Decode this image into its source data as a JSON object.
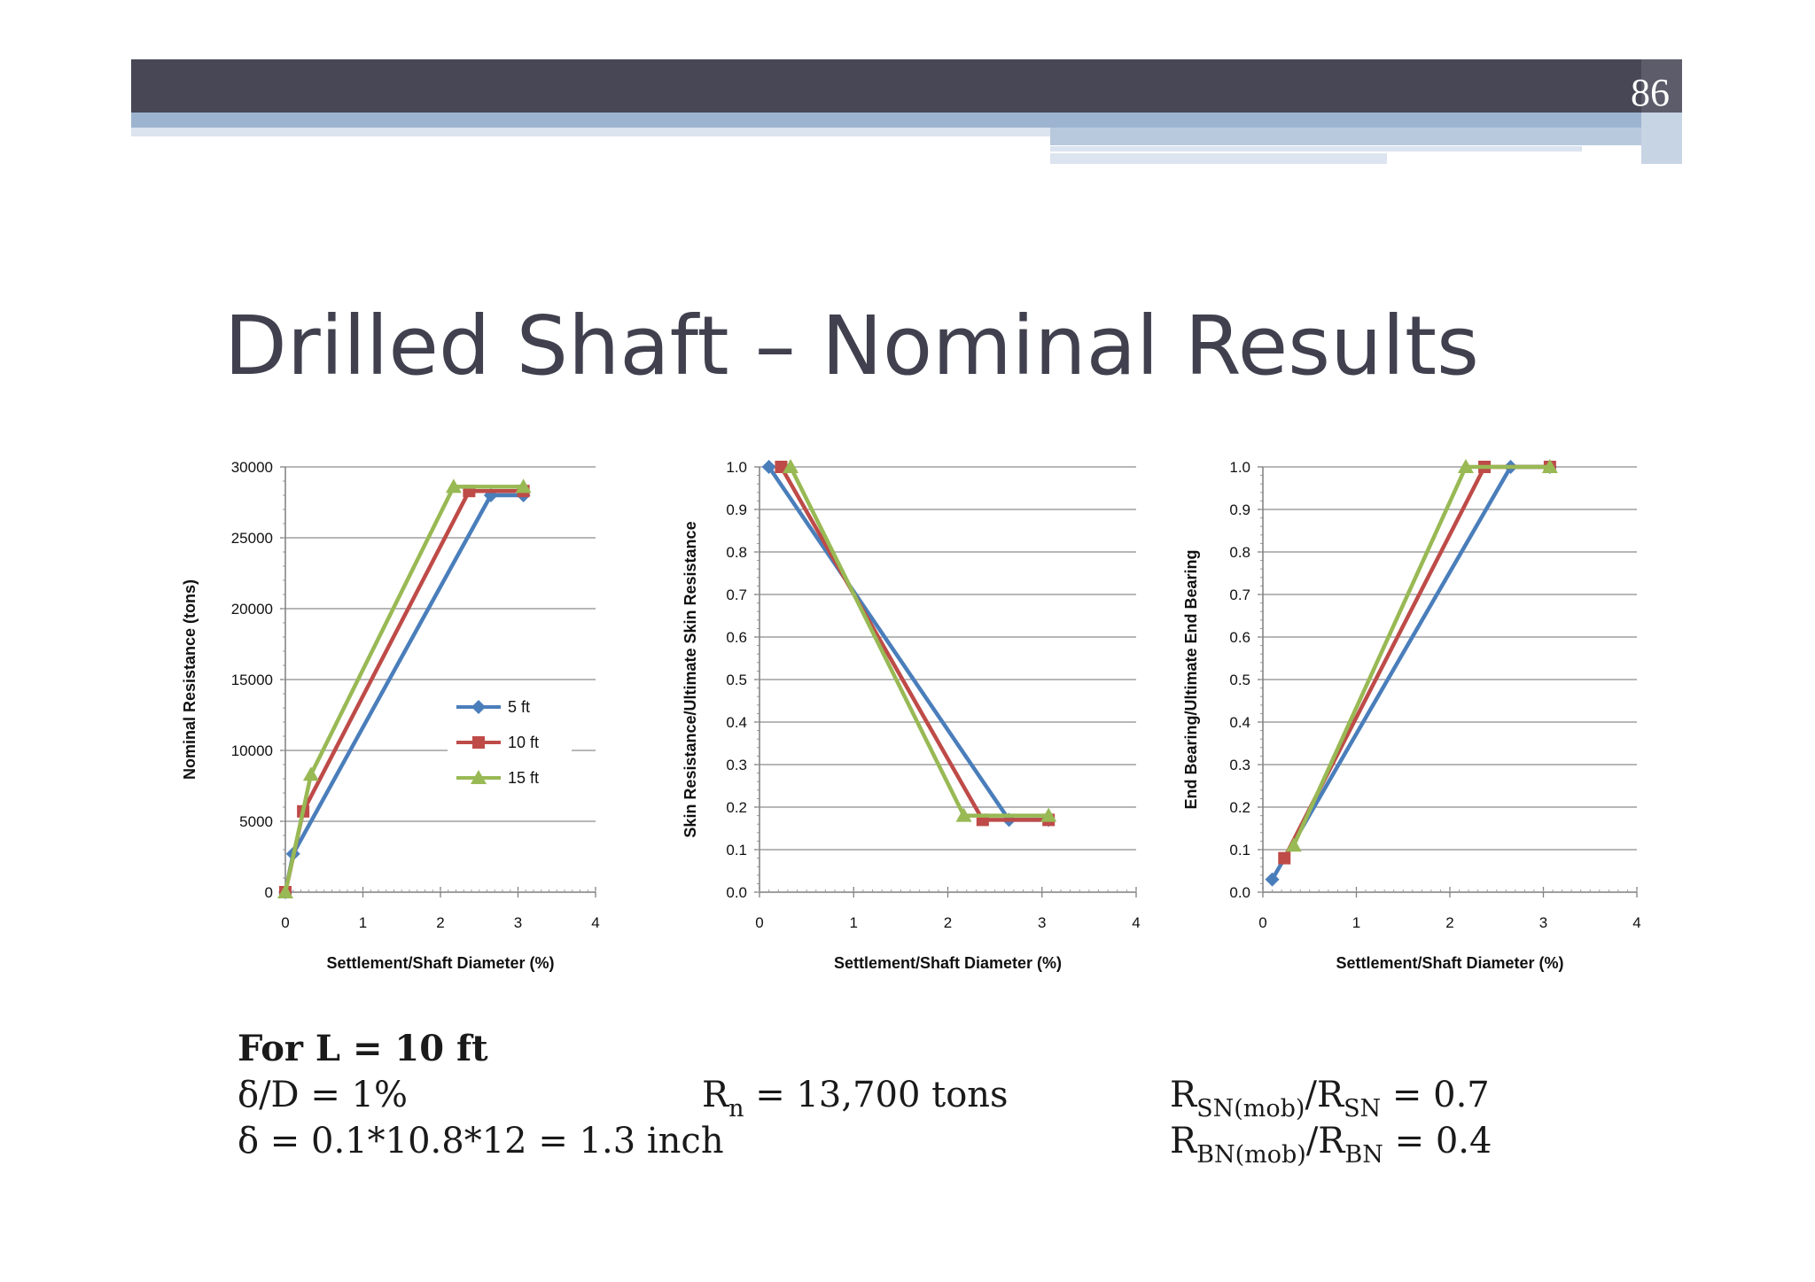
{
  "page": {
    "slide_number": "86",
    "title": "Drilled Shaft – Nominal Results"
  },
  "colors": {
    "header_bar": "#474756",
    "header_stripe": "#9db4d0",
    "title_text": "#40404f",
    "grid": "#8c8c8c",
    "series_5ft": "#4a7ebb",
    "series_10ft": "#be4b48",
    "series_15ft": "#98b954"
  },
  "chart_data": [
    {
      "type": "line",
      "xlabel": "Settlement/Shaft Diameter (%)",
      "ylabel": "Nominal Resistance  (tons)",
      "xlim": [
        0,
        4
      ],
      "ylim": [
        0,
        30000
      ],
      "xticks": [
        "0",
        "1",
        "2",
        "3",
        "4"
      ],
      "yticks": [
        "0",
        "5000",
        "10000",
        "15000",
        "20000",
        "25000",
        "30000"
      ],
      "grid": true,
      "legend": "center-right",
      "series": [
        {
          "name": "5 ft",
          "marker": "diamond",
          "color": "#4a7ebb",
          "x": [
            0.0,
            0.1,
            2.65,
            3.07
          ],
          "y": [
            0,
            2700,
            28000,
            28000
          ]
        },
        {
          "name": "10 ft",
          "marker": "square",
          "color": "#be4b48",
          "x": [
            0.0,
            0.23,
            2.37,
            3.07
          ],
          "y": [
            0,
            5700,
            28300,
            28300
          ]
        },
        {
          "name": "15 ft",
          "marker": "triangle",
          "color": "#98b954",
          "x": [
            0.0,
            0.33,
            2.17,
            3.07
          ],
          "y": [
            0,
            8300,
            28600,
            28600
          ]
        }
      ]
    },
    {
      "type": "line",
      "xlabel": "Settlement/Shaft Diameter (%)",
      "ylabel": "Skin Resistance/Ultimate Skin Resistance",
      "xlim": [
        0,
        4
      ],
      "ylim": [
        0,
        1
      ],
      "xticks": [
        "0",
        "1",
        "2",
        "3",
        "4"
      ],
      "yticks": [
        "0.0",
        "0.1",
        "0.2",
        "0.3",
        "0.4",
        "0.5",
        "0.6",
        "0.7",
        "0.8",
        "0.9",
        "1.0"
      ],
      "grid": true,
      "legend": "none",
      "series": [
        {
          "name": "5 ft",
          "marker": "diamond",
          "color": "#4a7ebb",
          "x": [
            0.1,
            2.65,
            3.07
          ],
          "y": [
            1.0,
            0.17,
            0.17
          ]
        },
        {
          "name": "10 ft",
          "marker": "square",
          "color": "#be4b48",
          "x": [
            0.23,
            2.37,
            3.07
          ],
          "y": [
            1.0,
            0.17,
            0.17
          ]
        },
        {
          "name": "15 ft",
          "marker": "triangle",
          "color": "#98b954",
          "x": [
            0.33,
            2.17,
            3.07
          ],
          "y": [
            1.0,
            0.18,
            0.18
          ]
        }
      ]
    },
    {
      "type": "line",
      "xlabel": "Settlement/Shaft Diameter (%)",
      "ylabel": "End Bearing/Ultimate End Bearing",
      "xlim": [
        0,
        4
      ],
      "ylim": [
        0,
        1
      ],
      "xticks": [
        "0",
        "1",
        "2",
        "3",
        "4"
      ],
      "yticks": [
        "0.0",
        "0.1",
        "0.2",
        "0.3",
        "0.4",
        "0.5",
        "0.6",
        "0.7",
        "0.8",
        "0.9",
        "1.0"
      ],
      "grid": true,
      "legend": "none",
      "series": [
        {
          "name": "5 ft",
          "marker": "diamond",
          "color": "#4a7ebb",
          "x": [
            0.1,
            2.65,
            3.07
          ],
          "y": [
            0.03,
            1.0,
            1.0
          ]
        },
        {
          "name": "10 ft",
          "marker": "square",
          "color": "#be4b48",
          "x": [
            0.23,
            2.37,
            3.07
          ],
          "y": [
            0.08,
            1.0,
            1.0
          ]
        },
        {
          "name": "15 ft",
          "marker": "triangle",
          "color": "#98b954",
          "x": [
            0.33,
            2.17,
            3.07
          ],
          "y": [
            0.11,
            1.0,
            1.0
          ]
        }
      ]
    }
  ],
  "notes": {
    "case_heading": "For L = 10 ft",
    "ratio_line": "δ/D = 1%",
    "delta_line": "δ = 0.1*10.8*12 = 1.3 inch",
    "rn": {
      "R": "R",
      "sub": "n",
      "rest": " = 13,700 tons"
    },
    "skin_ratio": {
      "R1": "R",
      "sub1": "SN(mob)",
      "slash": "/R",
      "sub2": "SN",
      "rest": " = 0.7"
    },
    "base_ratio": {
      "R1": "R",
      "sub1": "BN(mob)",
      "slash": "/R",
      "sub2": "BN",
      "rest": " = 0.4"
    }
  }
}
